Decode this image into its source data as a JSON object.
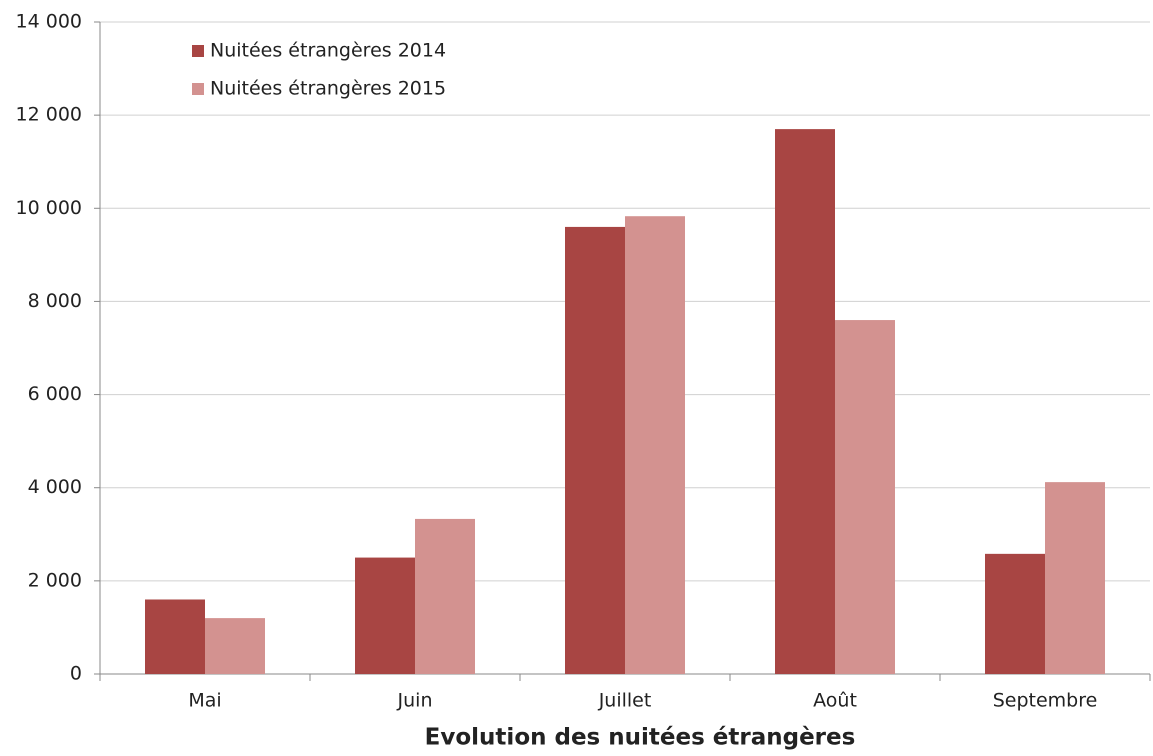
{
  "chart_data": {
    "type": "bar",
    "title": "Evolution des nuitées étrangères",
    "categories": [
      "Mai",
      "Juin",
      "Juillet",
      "Août",
      "Septembre"
    ],
    "series": [
      {
        "name": "Nuitées étrangères 2014",
        "color": "#a84543",
        "values": [
          1600,
          2500,
          9600,
          11700,
          2580
        ]
      },
      {
        "name": "Nuitées étrangères 2015",
        "color": "#d39290",
        "values": [
          1200,
          3330,
          9830,
          7600,
          4120
        ]
      }
    ],
    "ylim": [
      0,
      14000
    ],
    "yticks": [
      0,
      {
        "value": 2000,
        "label": "2 000"
      },
      {
        "value": 4000,
        "label": "4 000"
      },
      {
        "value": 6000,
        "label": "6 000"
      },
      {
        "value": 8000,
        "label": "8 000"
      },
      {
        "value": 10000,
        "label": "10 000"
      },
      {
        "value": 12000,
        "label": "12 000"
      },
      {
        "value": 14000,
        "label": "14 000"
      }
    ],
    "grid": true,
    "legend": "top-left"
  }
}
